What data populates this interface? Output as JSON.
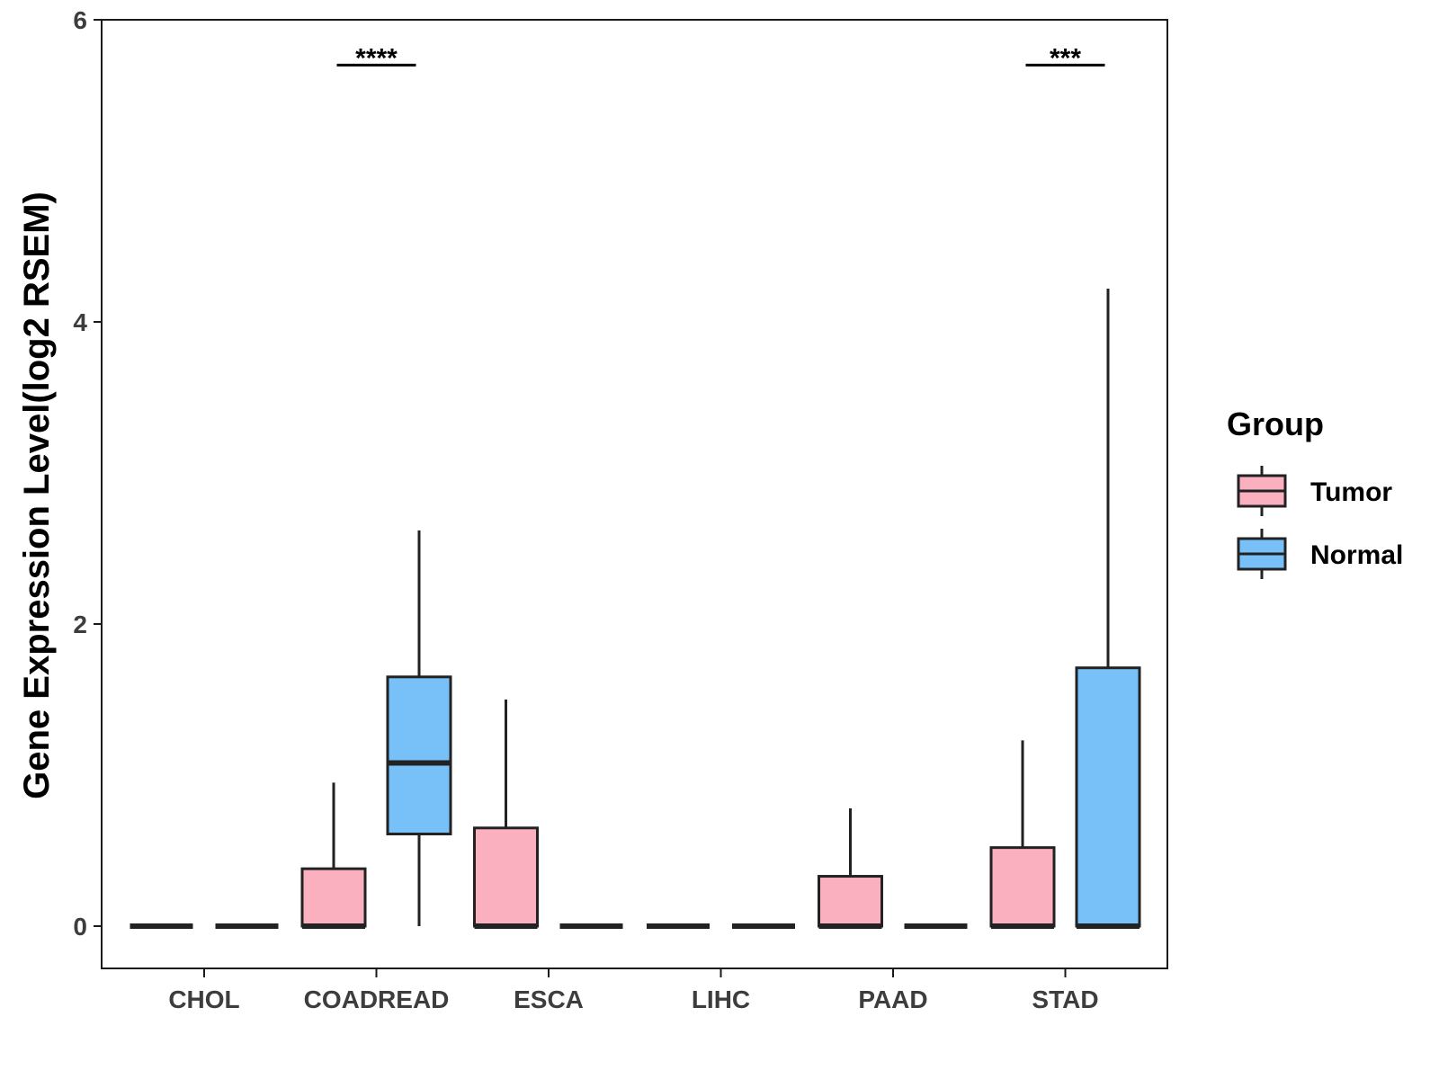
{
  "chart_data": {
    "type": "boxplot",
    "title": "",
    "xlabel": "",
    "ylabel": "Gene Expression Level(log2 RSEM)",
    "ylim": [
      -0.28,
      6
    ],
    "yticks": [
      0,
      2,
      4,
      6
    ],
    "grid": false,
    "legend_position": "right",
    "categories": [
      "CHOL",
      "COADREAD",
      "ESCA",
      "LIHC",
      "PAAD",
      "STAD"
    ],
    "legend": {
      "title": "Group",
      "entries": [
        {
          "name": "Tumor",
          "color": "#fbb0c0"
        },
        {
          "name": "Normal",
          "color": "#78c1f8"
        }
      ]
    },
    "series": [
      {
        "name": "Tumor",
        "color": "#fbb0c0",
        "boxes": [
          {
            "category": "CHOL",
            "whisker_low": 0,
            "q1": 0,
            "median": 0,
            "q3": 0,
            "whisker_high": 0
          },
          {
            "category": "COADREAD",
            "whisker_low": 0,
            "q1": 0,
            "median": 0,
            "q3": 0.38,
            "whisker_high": 0.95
          },
          {
            "category": "ESCA",
            "whisker_low": 0,
            "q1": 0,
            "median": 0,
            "q3": 0.65,
            "whisker_high": 1.5
          },
          {
            "category": "LIHC",
            "whisker_low": 0,
            "q1": 0,
            "median": 0,
            "q3": 0,
            "whisker_high": 0
          },
          {
            "category": "PAAD",
            "whisker_low": 0,
            "q1": 0,
            "median": 0,
            "q3": 0.33,
            "whisker_high": 0.78
          },
          {
            "category": "STAD",
            "whisker_low": 0,
            "q1": 0,
            "median": 0,
            "q3": 0.52,
            "whisker_high": 1.23
          }
        ]
      },
      {
        "name": "Normal",
        "color": "#78c1f8",
        "boxes": [
          {
            "category": "CHOL",
            "whisker_low": 0,
            "q1": 0,
            "median": 0,
            "q3": 0,
            "whisker_high": 0
          },
          {
            "category": "COADREAD",
            "whisker_low": 0,
            "q1": 0.61,
            "median": 1.08,
            "q3": 1.65,
            "whisker_high": 2.62
          },
          {
            "category": "ESCA",
            "whisker_low": 0,
            "q1": 0,
            "median": 0,
            "q3": 0,
            "whisker_high": 0
          },
          {
            "category": "LIHC",
            "whisker_low": 0,
            "q1": 0,
            "median": 0,
            "q3": 0,
            "whisker_high": 0
          },
          {
            "category": "PAAD",
            "whisker_low": 0,
            "q1": 0,
            "median": 0,
            "q3": 0,
            "whisker_high": 0
          },
          {
            "category": "STAD",
            "whisker_low": 0,
            "q1": 0,
            "median": 0,
            "q3": 1.71,
            "whisker_high": 4.22
          }
        ]
      }
    ],
    "annotations": [
      {
        "category": "COADREAD",
        "text": "****",
        "y": 5.7
      },
      {
        "category": "STAD",
        "text": "***",
        "y": 5.7
      }
    ]
  }
}
